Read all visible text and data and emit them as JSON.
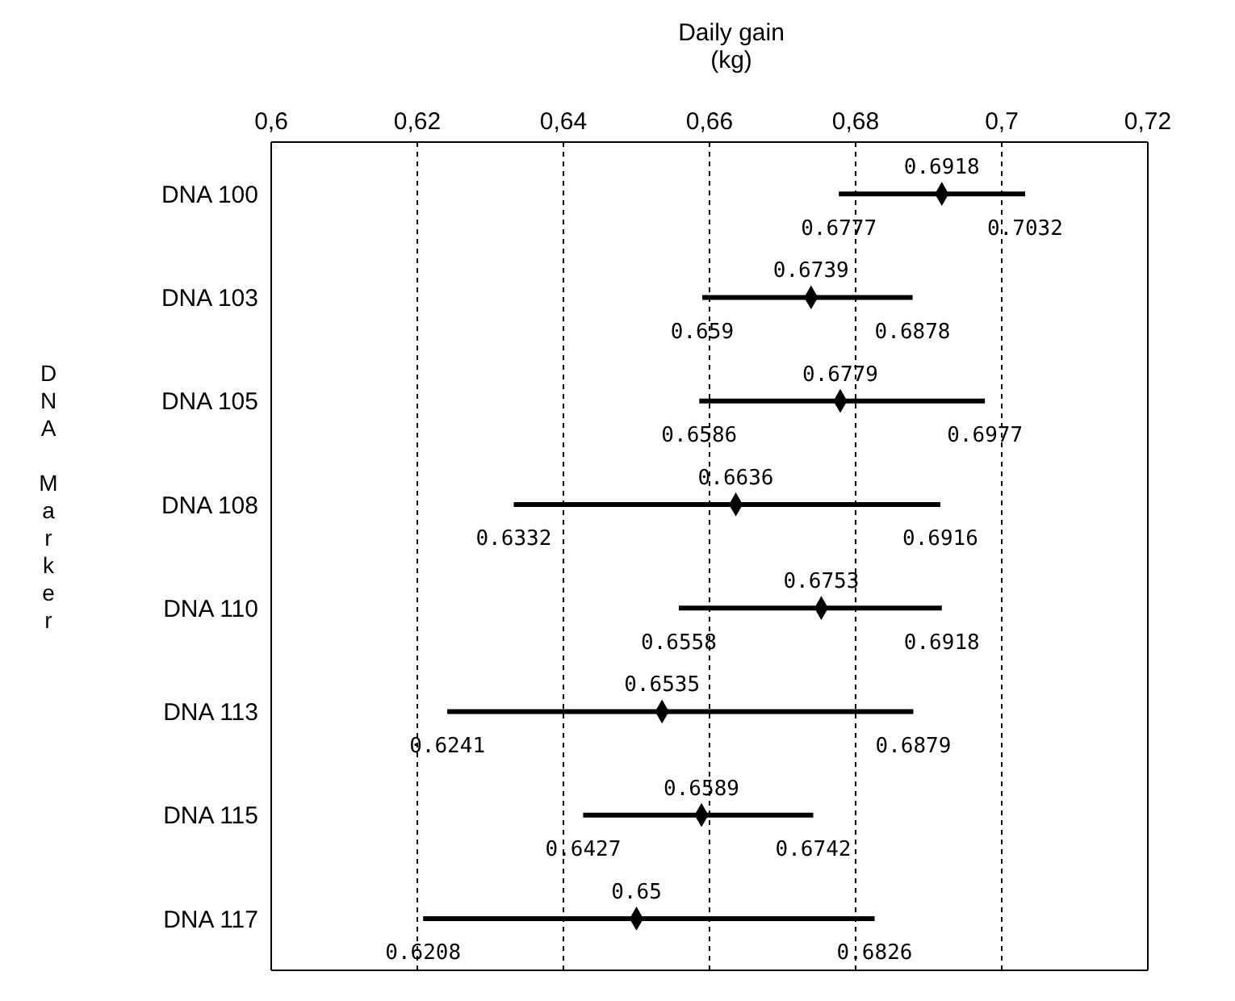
{
  "chart_data": {
    "type": "scatter",
    "orientation": "horizontal",
    "xlabel": "Daily gain\n(kg)",
    "ylabel": "DNA Marker",
    "categories": [
      "DNA 100",
      "DNA 103",
      "DNA 105",
      "DNA 108",
      "DNA 110",
      "DNA 113",
      "DNA 115",
      "DNA 117"
    ],
    "series": [
      {
        "color": "#000000",
        "values": [
          0.6918,
          0.6739,
          0.6779,
          0.6636,
          0.6753,
          0.6535,
          0.6589,
          0.65
        ],
        "errors": [
          [
            0.6777,
            0.7032
          ],
          [
            0.659,
            0.6878
          ],
          [
            0.6586,
            0.6977
          ],
          [
            0.6332,
            0.6916
          ],
          [
            0.6558,
            0.6918
          ],
          [
            0.6241,
            0.6879
          ],
          [
            0.6427,
            0.6742
          ],
          [
            0.6208,
            0.6826
          ]
        ]
      }
    ],
    "xlim": [
      0.6,
      0.72
    ],
    "xticks": [
      {
        "value": 0.6,
        "label": "0,6"
      },
      {
        "value": 0.62,
        "label": "0,62"
      },
      {
        "value": 0.64,
        "label": "0,64"
      },
      {
        "value": 0.66,
        "label": "0,66"
      },
      {
        "value": 0.68,
        "label": "0,68"
      },
      {
        "value": 0.7,
        "label": "0,7"
      },
      {
        "value": 0.72,
        "label": "0,72"
      }
    ],
    "grid": "x",
    "marker": "diamond",
    "data_labels": true,
    "annotations": [
      "0.6777",
      "0.7032",
      "0.659",
      "0.6878",
      "0.6586",
      "0.6977",
      "0.6332",
      "0.6916",
      "0.6558",
      "0.6918",
      "0.6241",
      "0.6879",
      "0.6427",
      "0.6742",
      "0.6208",
      "0.6826"
    ]
  }
}
